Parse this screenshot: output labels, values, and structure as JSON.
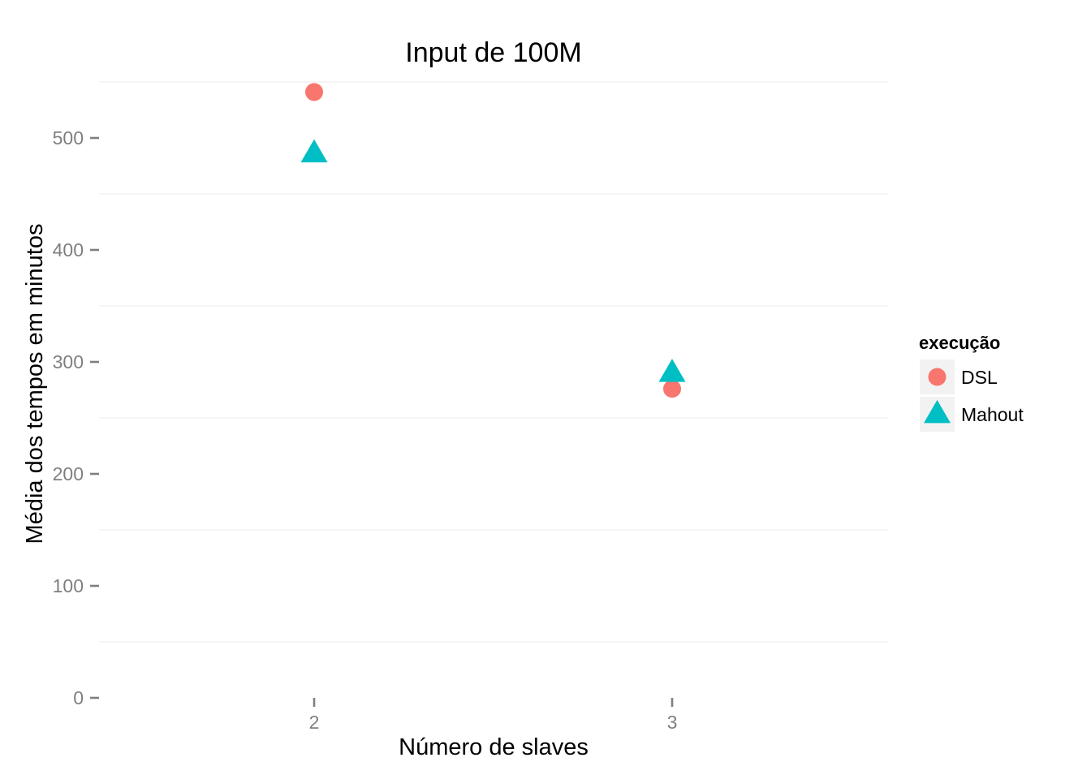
{
  "chart_data": {
    "type": "scatter",
    "title": "Input de 100M",
    "xlabel": "Número de slaves",
    "ylabel": "Média dos tempos em minutos",
    "x": [
      "2",
      "3"
    ],
    "yticks": [
      "0",
      "100",
      "200",
      "300",
      "400",
      "500"
    ],
    "ylim": [
      0,
      550
    ],
    "grid": true,
    "legend": {
      "title": "execução",
      "position": "right"
    },
    "series": [
      {
        "name": "DSL",
        "shape": "circle",
        "color": "#F8766D",
        "values": [
          541,
          276
        ]
      },
      {
        "name": "Mahout",
        "shape": "triangle",
        "color": "#00BFC4",
        "values": [
          486,
          290
        ]
      }
    ]
  }
}
